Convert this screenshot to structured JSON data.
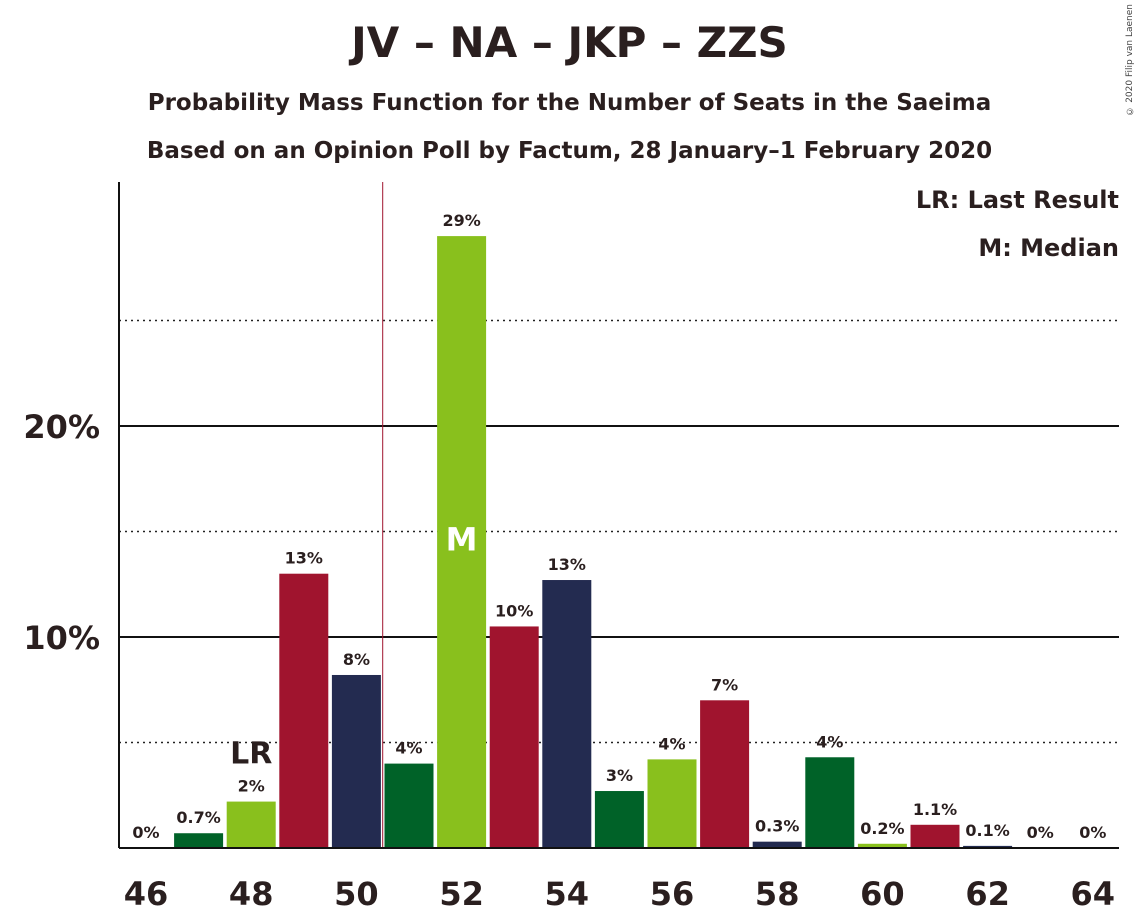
{
  "chart_data": {
    "type": "bar",
    "title": "JV – NA – JKP – ZZS",
    "subtitle1": "Probability Mass Function for the Number of Seats in the Saeima",
    "subtitle2": "Based on an Opinion Poll by Factum, 28 January–1 February 2020",
    "copyright": "© 2020 Filip van Laenen",
    "legend": {
      "last_result": "LR: Last Result",
      "median": "M: Median"
    },
    "x": [
      46,
      47,
      48,
      49,
      50,
      51,
      52,
      53,
      54,
      55,
      56,
      57,
      58,
      59,
      60,
      61,
      62,
      63,
      64
    ],
    "values": [
      0,
      0.7,
      2.2,
      13.0,
      8.2,
      4.0,
      29.0,
      10.5,
      12.7,
      2.7,
      4.2,
      7.0,
      0.3,
      4.3,
      0.2,
      1.1,
      0.1,
      0,
      0
    ],
    "labels": [
      "0%",
      "0.7%",
      "2%",
      "13%",
      "8%",
      "4%",
      "29%",
      "10%",
      "13%",
      "3%",
      "4%",
      "7%",
      "0.3%",
      "4%",
      "0.2%",
      "1.1%",
      "0.1%",
      "0%",
      "0%"
    ],
    "colors": [
      "#a0142e",
      "#006228",
      "#89c01d",
      "#a0142e",
      "#232b50",
      "#006228",
      "#89c01d",
      "#a0142e",
      "#232b50",
      "#006228",
      "#89c01d",
      "#a0142e",
      "#232b50",
      "#006228",
      "#89c01d",
      "#a0142e",
      "#232b50",
      "#006228",
      "#89c01d"
    ],
    "x_ticks": [
      46,
      48,
      50,
      52,
      54,
      56,
      58,
      60,
      62,
      64
    ],
    "y_ticks": [
      {
        "value": 10,
        "label": "10%"
      },
      {
        "value": 20,
        "label": "20%"
      }
    ],
    "y_minor_ticks": [
      5,
      15,
      25
    ],
    "ylim": [
      0,
      31.5
    ],
    "last_result": {
      "seats": 48,
      "label": "LR"
    },
    "median": {
      "seats": 52,
      "label": "M"
    },
    "majority_line": 50.5,
    "grid": true
  }
}
